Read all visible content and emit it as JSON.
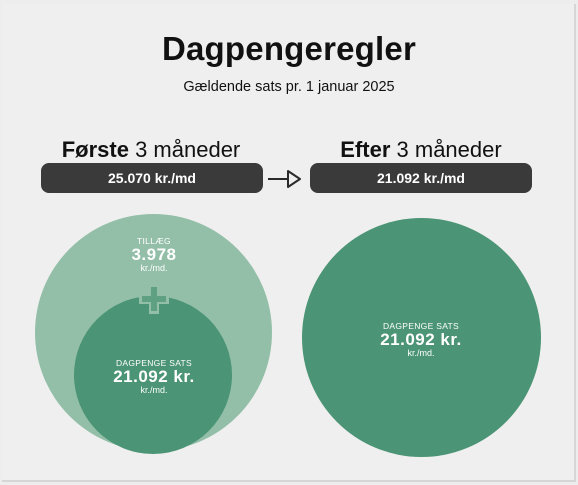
{
  "header": {
    "title": "Dagpengeregler",
    "subtitle": "Gældende sats pr. 1 januar 2025"
  },
  "left": {
    "heading_bold": "Første",
    "heading_rest": " 3 måneder",
    "amount": "25.070 kr./md",
    "supplement_label": "TILLÆG",
    "supplement_value": "3.978",
    "supplement_unit": "kr./md.",
    "base_label": "DAGPENGE SATS",
    "base_value": "21.092 kr.",
    "base_unit": "kr./md."
  },
  "right": {
    "heading_bold": "Efter",
    "heading_rest": " 3 måneder",
    "amount": "21.092 kr./md",
    "base_label": "DAGPENGE SATS",
    "base_value": "21.092 kr.",
    "base_unit": "kr./md."
  },
  "colors": {
    "dark_green": "#4b9475",
    "light_green": "#93bfa8",
    "pill": "#3a3a3a",
    "background": "#efefef"
  },
  "icons": {
    "arrow": "arrow-right-icon",
    "plus": "plus-icon"
  }
}
